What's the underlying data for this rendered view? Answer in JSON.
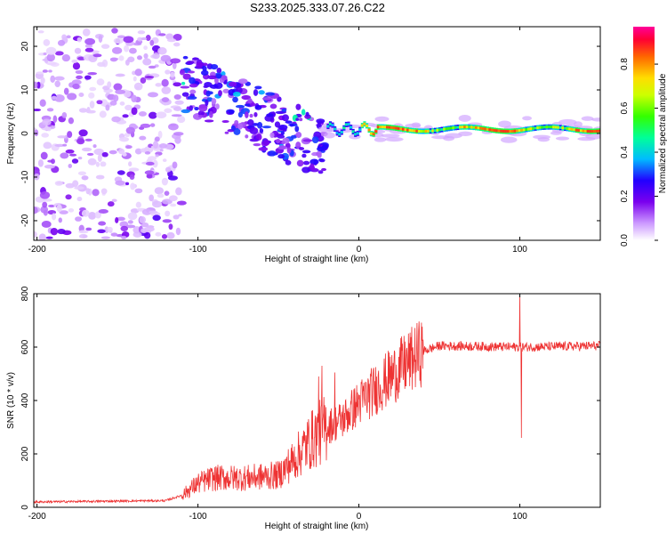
{
  "title": "S233.2025.333.07.26.C22",
  "chart_data": [
    {
      "type": "heatmap",
      "name": "spectrogram",
      "xlabel": "Height of straight line (km)",
      "ylabel": "Frequency (Hz)",
      "xlim": [
        -202,
        150
      ],
      "ylim": [
        -24.5,
        24.5
      ],
      "xticks": [
        -200,
        -100,
        0,
        100
      ],
      "yticks": [
        -20,
        -10,
        0,
        10,
        20
      ],
      "colorbar": {
        "label": "Normalized spectral amplitude",
        "range": [
          0,
          0.97
        ],
        "ticks": [
          0.0,
          0.2,
          0.4,
          0.6,
          0.8
        ]
      },
      "regions": [
        {
          "name": "noise",
          "x_range": [
            -202,
            -110
          ],
          "freq_range": [
            -24,
            24
          ],
          "amplitude": 0.1
        },
        {
          "name": "transition",
          "x_range": [
            -110,
            -20
          ],
          "freq_center_start": 12,
          "freq_center_end": -4,
          "amplitude": 0.2
        },
        {
          "name": "carrier",
          "x_range": [
            -20,
            150
          ],
          "freq_center": 1,
          "amplitude": 0.9
        }
      ]
    },
    {
      "type": "line",
      "name": "snr",
      "xlabel": "Height of straight line (km)",
      "ylabel": "SNR (10 * v/v)",
      "xlim": [
        -202,
        150
      ],
      "ylim": [
        0,
        800
      ],
      "xticks": [
        -200,
        -100,
        0,
        100
      ],
      "yticks": [
        0,
        200,
        400,
        600,
        800
      ],
      "color": "#ee3333",
      "profile": [
        {
          "x": -202,
          "y": 20
        },
        {
          "x": -120,
          "y": 25
        },
        {
          "x": -110,
          "y": 45
        },
        {
          "x": -100,
          "y": 90
        },
        {
          "x": -90,
          "y": 110
        },
        {
          "x": -70,
          "y": 110
        },
        {
          "x": -50,
          "y": 120
        },
        {
          "x": -40,
          "y": 180
        },
        {
          "x": -30,
          "y": 250
        },
        {
          "x": -20,
          "y": 300
        },
        {
          "x": -10,
          "y": 330
        },
        {
          "x": 0,
          "y": 390
        },
        {
          "x": 10,
          "y": 440
        },
        {
          "x": 20,
          "y": 490
        },
        {
          "x": 30,
          "y": 540
        },
        {
          "x": 40,
          "y": 585
        },
        {
          "x": 50,
          "y": 605
        },
        {
          "x": 100,
          "y": 600
        },
        {
          "x": 150,
          "y": 605
        }
      ],
      "spikes": [
        {
          "x": -25,
          "y": 490
        },
        {
          "x": -23,
          "y": 530
        },
        {
          "x": -15,
          "y": 505
        },
        {
          "x": 100,
          "y": 800
        },
        {
          "x": 101,
          "y": 260
        }
      ]
    }
  ]
}
